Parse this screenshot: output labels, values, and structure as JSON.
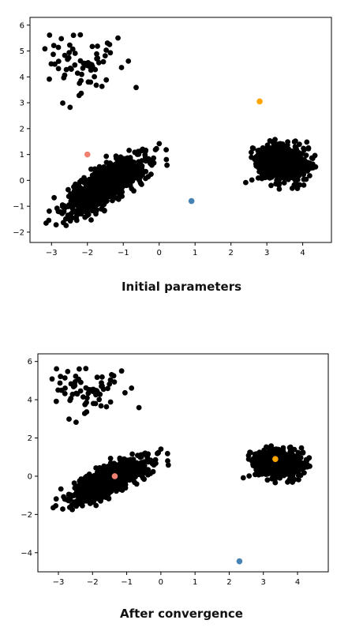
{
  "captions": {
    "top": "Initial parameters",
    "bottom": "After convergence"
  },
  "chart_data": [
    {
      "type": "scatter",
      "title": "",
      "xlabel": "",
      "ylabel": "",
      "xlim": [
        -3.6,
        4.8
      ],
      "ylim": [
        -2.4,
        6.3
      ],
      "xticks": [
        -3,
        -2,
        -1,
        0,
        1,
        2,
        3,
        4
      ],
      "yticks": [
        -2,
        -1,
        0,
        1,
        2,
        3,
        4,
        5,
        6
      ],
      "grid": false,
      "legend": "none",
      "data_color": "#000000",
      "clusters": [
        {
          "name": "upper-left",
          "center": [
            -2.2,
            4.5
          ],
          "spread": [
            0.5,
            0.6
          ],
          "n": 70,
          "corr": 0
        },
        {
          "name": "lower-left",
          "center": [
            -1.5,
            -0.2
          ],
          "spread": [
            0.55,
            0.55
          ],
          "n": 900,
          "corr": 0.75
        },
        {
          "name": "right",
          "center": [
            3.4,
            0.7
          ],
          "spread": [
            0.35,
            0.32
          ],
          "n": 700,
          "corr": 0
        }
      ],
      "centroids": [
        {
          "x": -2.0,
          "y": 1.0,
          "color": "#f08070"
        },
        {
          "x": 0.9,
          "y": -0.8,
          "color": "#4682b4"
        },
        {
          "x": 2.8,
          "y": 3.05,
          "color": "#ffa500"
        }
      ]
    },
    {
      "type": "scatter",
      "title": "",
      "xlabel": "",
      "ylabel": "",
      "xlim": [
        -3.6,
        4.9
      ],
      "ylim": [
        -5.0,
        6.4
      ],
      "xticks": [
        -3,
        -2,
        -1,
        0,
        1,
        2,
        3,
        4
      ],
      "yticks": [
        -4,
        -2,
        0,
        2,
        4,
        6
      ],
      "grid": false,
      "legend": "none",
      "data_color": "#000000",
      "clusters": [
        {
          "name": "upper-left",
          "center": [
            -2.2,
            4.5
          ],
          "spread": [
            0.5,
            0.6
          ],
          "n": 70,
          "corr": 0
        },
        {
          "name": "lower-left",
          "center": [
            -1.5,
            -0.2
          ],
          "spread": [
            0.55,
            0.55
          ],
          "n": 900,
          "corr": 0.75
        },
        {
          "name": "right",
          "center": [
            3.4,
            0.7
          ],
          "spread": [
            0.35,
            0.32
          ],
          "n": 700,
          "corr": 0
        }
      ],
      "centroids": [
        {
          "x": -1.35,
          "y": 0.0,
          "color": "#f08070"
        },
        {
          "x": 2.3,
          "y": -4.45,
          "color": "#4682b4"
        },
        {
          "x": 3.35,
          "y": 0.9,
          "color": "#ffa500"
        }
      ]
    }
  ]
}
